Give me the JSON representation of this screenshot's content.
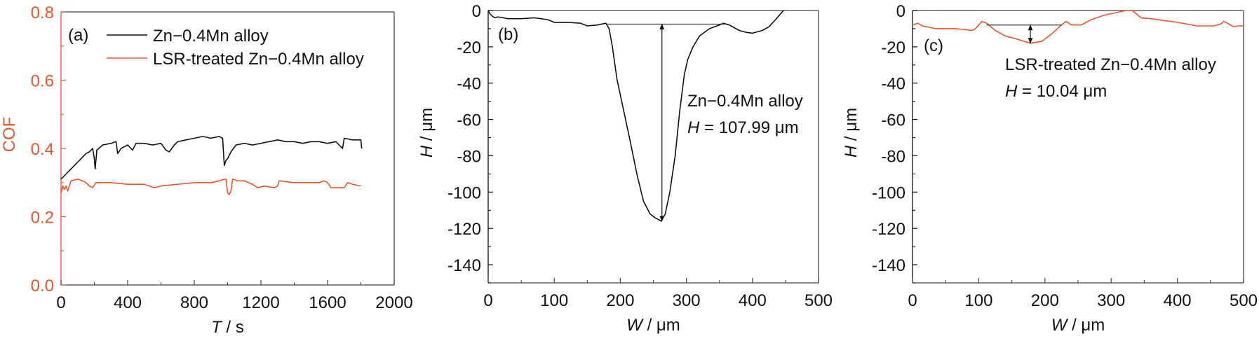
{
  "colors": {
    "black": "#111111",
    "orange": "#e8552e",
    "axis_a_y": "#e8552e"
  },
  "chart_data": [
    {
      "type": "line",
      "panel_label": "(a)",
      "xlabel_italic": "T",
      "xlabel_unit": " / s",
      "ylabel": "COF",
      "xlim": [
        0,
        2000
      ],
      "ylim": [
        0,
        0.8
      ],
      "xticks": [
        "0",
        "400",
        "800",
        "1200",
        "1600",
        "2000"
      ],
      "xtick_values": [
        0,
        400,
        800,
        1200,
        1600,
        2000
      ],
      "yticks": [
        "0.0",
        "0.2",
        "0.4",
        "0.6",
        "0.8"
      ],
      "ytick_values": [
        0,
        0.2,
        0.4,
        0.6,
        0.8
      ],
      "legend_position": "top",
      "series": [
        {
          "name": "Zn−0.4Mn alloy",
          "color": "#111111",
          "x": [
            0,
            20,
            50,
            80,
            100,
            130,
            150,
            170,
            190,
            200,
            205,
            215,
            250,
            300,
            330,
            340,
            360,
            400,
            430,
            450,
            500,
            550,
            600,
            630,
            650,
            680,
            700,
            750,
            800,
            850,
            900,
            950,
            970,
            980,
            990,
            1000,
            1020,
            1050,
            1100,
            1150,
            1200,
            1250,
            1300,
            1350,
            1400,
            1450,
            1500,
            1550,
            1600,
            1650,
            1690,
            1700,
            1750,
            1800,
            1805
          ],
          "y": [
            0.31,
            0.32,
            0.335,
            0.35,
            0.36,
            0.375,
            0.385,
            0.39,
            0.4,
            0.37,
            0.34,
            0.395,
            0.41,
            0.415,
            0.42,
            0.385,
            0.4,
            0.41,
            0.395,
            0.415,
            0.415,
            0.41,
            0.415,
            0.395,
            0.39,
            0.41,
            0.42,
            0.425,
            0.43,
            0.435,
            0.43,
            0.435,
            0.43,
            0.35,
            0.365,
            0.37,
            0.39,
            0.41,
            0.415,
            0.41,
            0.415,
            0.42,
            0.425,
            0.42,
            0.42,
            0.415,
            0.42,
            0.42,
            0.415,
            0.42,
            0.4,
            0.43,
            0.425,
            0.425,
            0.4
          ]
        },
        {
          "name": "LSR-treated Zn−0.4Mn alloy",
          "color": "#e8552e",
          "x": [
            0,
            10,
            20,
            30,
            40,
            60,
            100,
            130,
            150,
            170,
            190,
            210,
            250,
            300,
            400,
            500,
            560,
            600,
            700,
            800,
            900,
            950,
            980,
            990,
            1000,
            1010,
            1020,
            1030,
            1060,
            1100,
            1150,
            1180,
            1220,
            1280,
            1300,
            1310,
            1400,
            1500,
            1550,
            1580,
            1600,
            1620,
            1650,
            1700,
            1720,
            1750,
            1800
          ],
          "y": [
            0.27,
            0.29,
            0.28,
            0.29,
            0.275,
            0.305,
            0.31,
            0.305,
            0.3,
            0.29,
            0.285,
            0.3,
            0.3,
            0.3,
            0.295,
            0.295,
            0.285,
            0.29,
            0.295,
            0.3,
            0.3,
            0.305,
            0.31,
            0.31,
            0.27,
            0.265,
            0.275,
            0.31,
            0.305,
            0.305,
            0.295,
            0.285,
            0.29,
            0.285,
            0.29,
            0.305,
            0.3,
            0.3,
            0.3,
            0.305,
            0.3,
            0.285,
            0.285,
            0.285,
            0.3,
            0.295,
            0.29
          ]
        }
      ]
    },
    {
      "type": "line",
      "panel_label": "(b)",
      "xlabel_italic": "W",
      "xlabel_unit": " / μm",
      "ylabel_italic": "H",
      "ylabel_unit": " / μm",
      "xlim": [
        0,
        500
      ],
      "ylim": [
        -150,
        0
      ],
      "xticks": [
        "0",
        "100",
        "200",
        "300",
        "400",
        "500"
      ],
      "xtick_values": [
        0,
        100,
        200,
        300,
        400,
        500
      ],
      "yticks": [
        "0",
        "-20",
        "-40",
        "-60",
        "-80",
        "-100",
        "-120",
        "-140"
      ],
      "ytick_values": [
        0,
        -20,
        -40,
        -60,
        -80,
        -100,
        -120,
        -140
      ],
      "series": [
        {
          "name": "Zn−0.4Mn alloy",
          "color": "#111111",
          "x": [
            0,
            3,
            6,
            10,
            15,
            30,
            50,
            70,
            90,
            100,
            120,
            140,
            150,
            165,
            178,
            183,
            188,
            195,
            205,
            215,
            225,
            235,
            245,
            252,
            262,
            268,
            275,
            283,
            290,
            297,
            302,
            310,
            320,
            335,
            350,
            356,
            365,
            380,
            390,
            400,
            415,
            425,
            435,
            442,
            447
          ],
          "y": [
            0,
            -2,
            -3,
            -4,
            -3.5,
            -4.5,
            -4.5,
            -4,
            -5,
            -6.5,
            -6.5,
            -7,
            -8.5,
            -8,
            -7,
            -10,
            -20,
            -38,
            -55,
            -72,
            -90,
            -105,
            -112,
            -114,
            -116,
            -112,
            -100,
            -80,
            -55,
            -35,
            -27,
            -20,
            -14,
            -10,
            -8,
            -7,
            -8,
            -11,
            -12,
            -12.5,
            -11,
            -9,
            -5,
            -2,
            0
          ]
        }
      ],
      "annotation": {
        "line1": "Zn−0.4Mn alloy",
        "h_italic": "H",
        "h_value": " = 107.99 μm",
        "measured_depth": 107.99,
        "ref_y": -7.5,
        "ref_x": [
          180,
          360
        ],
        "arrow_x": 263,
        "arrow_y": [
          -7.5,
          -116
        ]
      }
    },
    {
      "type": "line",
      "panel_label": "(c)",
      "xlabel_italic": "W",
      "xlabel_unit": " / μm",
      "ylabel_italic": "H",
      "ylabel_unit": " / μm",
      "xlim": [
        0,
        500
      ],
      "ylim": [
        -150,
        0
      ],
      "xticks": [
        "0",
        "100",
        "200",
        "300",
        "400",
        "500"
      ],
      "xtick_values": [
        0,
        100,
        200,
        300,
        400,
        500
      ],
      "yticks": [
        "0",
        "-20",
        "-40",
        "-60",
        "-80",
        "-100",
        "-120",
        "-140"
      ],
      "ytick_values": [
        0,
        -20,
        -40,
        -60,
        -80,
        -100,
        -120,
        -140
      ],
      "series": [
        {
          "name": "LSR-treated Zn−0.4Mn alloy",
          "color": "#e8552e",
          "x": [
            0,
            8,
            15,
            35,
            65,
            90,
            95,
            105,
            112,
            125,
            140,
            160,
            178,
            195,
            210,
            225,
            232,
            240,
            255,
            270,
            290,
            310,
            322,
            332,
            345,
            360,
            380,
            400,
            430,
            455,
            465,
            470,
            478,
            485,
            492,
            500
          ],
          "y": [
            -8,
            -7,
            -8.5,
            -10,
            -10,
            -11,
            -10,
            -6,
            -7,
            -11,
            -14,
            -16,
            -18,
            -17,
            -13,
            -8,
            -6,
            -8,
            -8,
            -5,
            -2.5,
            -1,
            0,
            0,
            -4,
            -4.5,
            -5.5,
            -6.5,
            -8.5,
            -8.5,
            -7.5,
            -6,
            -7.5,
            -9,
            -8.5,
            -8.5
          ]
        }
      ],
      "annotation": {
        "line1": "LSR-treated Zn−0.4Mn alloy",
        "h_italic": "H",
        "h_value": " = 10.04 μm",
        "measured_depth": 10.04,
        "ref_y": -8,
        "ref_x": [
          112,
          225
        ],
        "arrow_x": 178,
        "arrow_y": [
          -8,
          -18
        ]
      }
    }
  ]
}
